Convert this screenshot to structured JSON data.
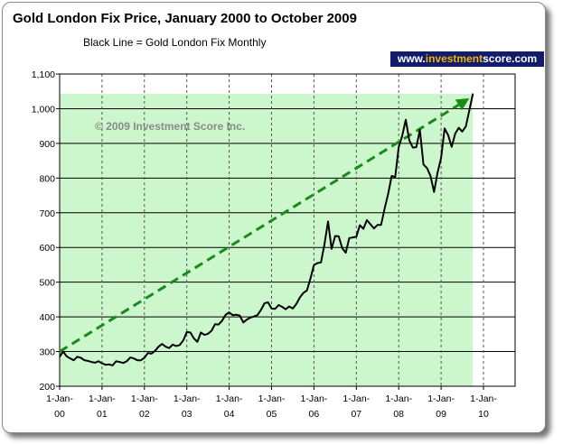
{
  "header": {
    "title": "Gold London Fix Price, January 2000 to October 2009",
    "subtitle": "Black Line = Gold London Fix Monthly",
    "brand_prefix": "www.",
    "brand_highlight": "investment",
    "brand_suffix": "score.com"
  },
  "copyright": "© 2009 Investment Score Inc.",
  "colors": {
    "plot_shade": "#ccf7cc",
    "price_line": "#000000",
    "trend_arrow": "#1a8a1a",
    "brand_bg": "#111d6b",
    "brand_highlight": "#f2b400"
  },
  "chart_data": {
    "type": "line",
    "title": "Gold London Fix Price, January 2000 to October 2009",
    "subtitle": "Black Line = Gold London Fix Monthly",
    "ylim": [
      200,
      1100
    ],
    "y_ticks": [
      "200",
      "300",
      "400",
      "500",
      "600",
      "700",
      "800",
      "900",
      "1,000",
      "1,100"
    ],
    "x_ticks": [
      {
        "line1": "1-Jan-",
        "line2": "00"
      },
      {
        "line1": "1-Jan-",
        "line2": "01"
      },
      {
        "line1": "1-Jan-",
        "line2": "02"
      },
      {
        "line1": "1-Jan-",
        "line2": "03"
      },
      {
        "line1": "1-Jan-",
        "line2": "04"
      },
      {
        "line1": "1-Jan-",
        "line2": "05"
      },
      {
        "line1": "1-Jan-",
        "line2": "06"
      },
      {
        "line1": "1-Jan-",
        "line2": "07"
      },
      {
        "line1": "1-Jan-",
        "line2": "08"
      },
      {
        "line1": "1-Jan-",
        "line2": "09"
      },
      {
        "line1": "1-Jan-",
        "line2": "10"
      }
    ],
    "grid": {
      "horizontal": true,
      "vertical_dashed": true
    },
    "series": [
      {
        "name": "Gold London Fix Monthly",
        "points": [
          [
            "2000-01",
            285
          ],
          [
            "2000-02",
            300
          ],
          [
            "2000-03",
            286
          ],
          [
            "2000-04",
            280
          ],
          [
            "2000-05",
            275
          ],
          [
            "2000-06",
            285
          ],
          [
            "2000-07",
            282
          ],
          [
            "2000-08",
            275
          ],
          [
            "2000-09",
            273
          ],
          [
            "2000-10",
            270
          ],
          [
            "2000-11",
            268
          ],
          [
            "2000-12",
            272
          ],
          [
            "2001-01",
            266
          ],
          [
            "2001-02",
            262
          ],
          [
            "2001-03",
            263
          ],
          [
            "2001-04",
            260
          ],
          [
            "2001-05",
            272
          ],
          [
            "2001-06",
            270
          ],
          [
            "2001-07",
            267
          ],
          [
            "2001-08",
            272
          ],
          [
            "2001-09",
            283
          ],
          [
            "2001-10",
            280
          ],
          [
            "2001-11",
            275
          ],
          [
            "2001-12",
            275
          ],
          [
            "2002-01",
            282
          ],
          [
            "2002-02",
            296
          ],
          [
            "2002-03",
            294
          ],
          [
            "2002-04",
            302
          ],
          [
            "2002-05",
            314
          ],
          [
            "2002-06",
            322
          ],
          [
            "2002-07",
            314
          ],
          [
            "2002-08",
            310
          ],
          [
            "2002-09",
            320
          ],
          [
            "2002-10",
            316
          ],
          [
            "2002-11",
            319
          ],
          [
            "2002-12",
            332
          ],
          [
            "2003-01",
            356
          ],
          [
            "2003-02",
            355
          ],
          [
            "2003-03",
            338
          ],
          [
            "2003-04",
            328
          ],
          [
            "2003-05",
            355
          ],
          [
            "2003-06",
            348
          ],
          [
            "2003-07",
            351
          ],
          [
            "2003-08",
            360
          ],
          [
            "2003-09",
            379
          ],
          [
            "2003-10",
            378
          ],
          [
            "2003-11",
            389
          ],
          [
            "2003-12",
            406
          ],
          [
            "2004-01",
            413
          ],
          [
            "2004-02",
            405
          ],
          [
            "2004-03",
            406
          ],
          [
            "2004-04",
            404
          ],
          [
            "2004-05",
            384
          ],
          [
            "2004-06",
            392
          ],
          [
            "2004-07",
            398
          ],
          [
            "2004-08",
            401
          ],
          [
            "2004-09",
            405
          ],
          [
            "2004-10",
            420
          ],
          [
            "2004-11",
            439
          ],
          [
            "2004-12",
            442
          ],
          [
            "2005-01",
            424
          ],
          [
            "2005-02",
            423
          ],
          [
            "2005-03",
            434
          ],
          [
            "2005-04",
            429
          ],
          [
            "2005-05",
            422
          ],
          [
            "2005-06",
            430
          ],
          [
            "2005-07",
            424
          ],
          [
            "2005-08",
            437
          ],
          [
            "2005-09",
            456
          ],
          [
            "2005-10",
            469
          ],
          [
            "2005-11",
            476
          ],
          [
            "2005-12",
            510
          ],
          [
            "2006-01",
            549
          ],
          [
            "2006-02",
            555
          ],
          [
            "2006-03",
            557
          ],
          [
            "2006-04",
            610
          ],
          [
            "2006-05",
            675
          ],
          [
            "2006-06",
            596
          ],
          [
            "2006-07",
            633
          ],
          [
            "2006-08",
            632
          ],
          [
            "2006-09",
            598
          ],
          [
            "2006-10",
            585
          ],
          [
            "2006-11",
            627
          ],
          [
            "2006-12",
            629
          ],
          [
            "2007-01",
            631
          ],
          [
            "2007-02",
            664
          ],
          [
            "2007-03",
            654
          ],
          [
            "2007-04",
            679
          ],
          [
            "2007-05",
            667
          ],
          [
            "2007-06",
            655
          ],
          [
            "2007-07",
            665
          ],
          [
            "2007-08",
            665
          ],
          [
            "2007-09",
            712
          ],
          [
            "2007-10",
            754
          ],
          [
            "2007-11",
            806
          ],
          [
            "2007-12",
            803
          ],
          [
            "2008-01",
            889
          ],
          [
            "2008-02",
            922
          ],
          [
            "2008-03",
            968
          ],
          [
            "2008-04",
            909
          ],
          [
            "2008-05",
            888
          ],
          [
            "2008-06",
            889
          ],
          [
            "2008-07",
            939
          ],
          [
            "2008-08",
            839
          ],
          [
            "2008-09",
            829
          ],
          [
            "2008-10",
            806
          ],
          [
            "2008-11",
            760
          ],
          [
            "2008-12",
            816
          ],
          [
            "2009-01",
            858
          ],
          [
            "2009-02",
            943
          ],
          [
            "2009-03",
            924
          ],
          [
            "2009-04",
            890
          ],
          [
            "2009-05",
            928
          ],
          [
            "2009-06",
            945
          ],
          [
            "2009-07",
            934
          ],
          [
            "2009-08",
            949
          ],
          [
            "2009-09",
            996
          ],
          [
            "2009-10",
            1043
          ]
        ]
      }
    ],
    "trend_arrow": {
      "from": [
        "2000-01",
        300
      ],
      "to": [
        "2009-09",
        1030
      ]
    },
    "shaded_region": {
      "x": [
        "2000-01",
        "2009-10"
      ],
      "y": [
        200,
        1043
      ]
    }
  }
}
